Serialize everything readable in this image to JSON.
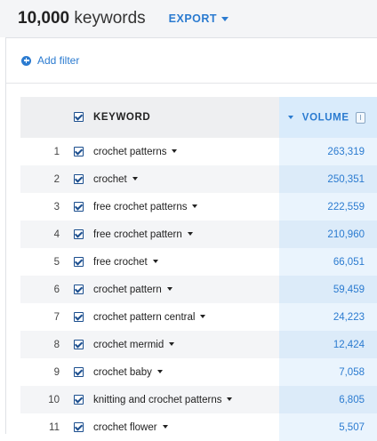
{
  "header": {
    "count": "10,000",
    "count_label": "keywords",
    "export_label": "EXPORT"
  },
  "filters": {
    "add_filter_label": "Add filter"
  },
  "table": {
    "columns": {
      "keyword": "KEYWORD",
      "volume": "VOLUME"
    },
    "rows": [
      {
        "num": "1",
        "keyword": "crochet patterns",
        "volume": "263,319"
      },
      {
        "num": "2",
        "keyword": "crochet",
        "volume": "250,351"
      },
      {
        "num": "3",
        "keyword": "free crochet patterns",
        "volume": "222,559"
      },
      {
        "num": "4",
        "keyword": "free crochet pattern",
        "volume": "210,960"
      },
      {
        "num": "5",
        "keyword": "free crochet",
        "volume": "66,051"
      },
      {
        "num": "6",
        "keyword": "crochet pattern",
        "volume": "59,459"
      },
      {
        "num": "7",
        "keyword": "crochet pattern central",
        "volume": "24,223"
      },
      {
        "num": "8",
        "keyword": "crochet mermid",
        "volume": "12,424"
      },
      {
        "num": "9",
        "keyword": "crochet baby",
        "volume": "7,058"
      },
      {
        "num": "10",
        "keyword": "knitting and crochet patterns",
        "volume": "6,805"
      },
      {
        "num": "11",
        "keyword": "crochet flower",
        "volume": "5,507"
      }
    ]
  },
  "colors": {
    "accent": "#2b7bd0",
    "checkbox": "#1b4e8e",
    "volume_column_bg": "#eaf4fd"
  }
}
